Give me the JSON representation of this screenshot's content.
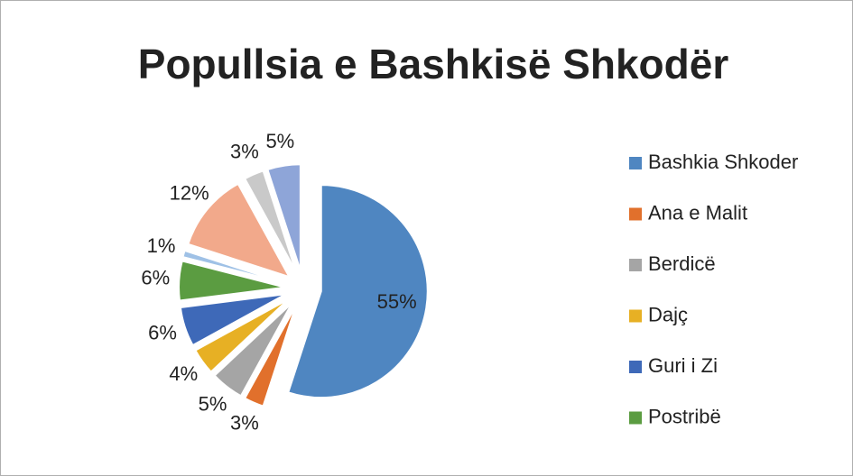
{
  "chart_data": {
    "type": "pie",
    "title": "Popullsia e Bashkisë Shkodër",
    "categories": [
      "Bashkia Shkoder",
      "Ana e Malit",
      "Berdicë",
      "Dajç",
      "Guri i Zi",
      "Postribë",
      null,
      null,
      null,
      null
    ],
    "values": [
      55,
      3,
      5,
      4,
      6,
      6,
      1,
      12,
      3,
      5
    ],
    "value_labels": [
      "55%",
      "3%",
      "5%",
      "4%",
      "6%",
      "6%",
      "1%",
      "12%",
      "3%",
      "5%"
    ],
    "colors": [
      "#4f86c1",
      "#e1702c",
      "#a5a5a5",
      "#e7b024",
      "#3e69b8",
      "#5b9c41",
      "#9fc1e6",
      "#f2a98b",
      "#c9c9c9",
      "#8ea5d8"
    ],
    "legend": "right",
    "exploded": true
  }
}
